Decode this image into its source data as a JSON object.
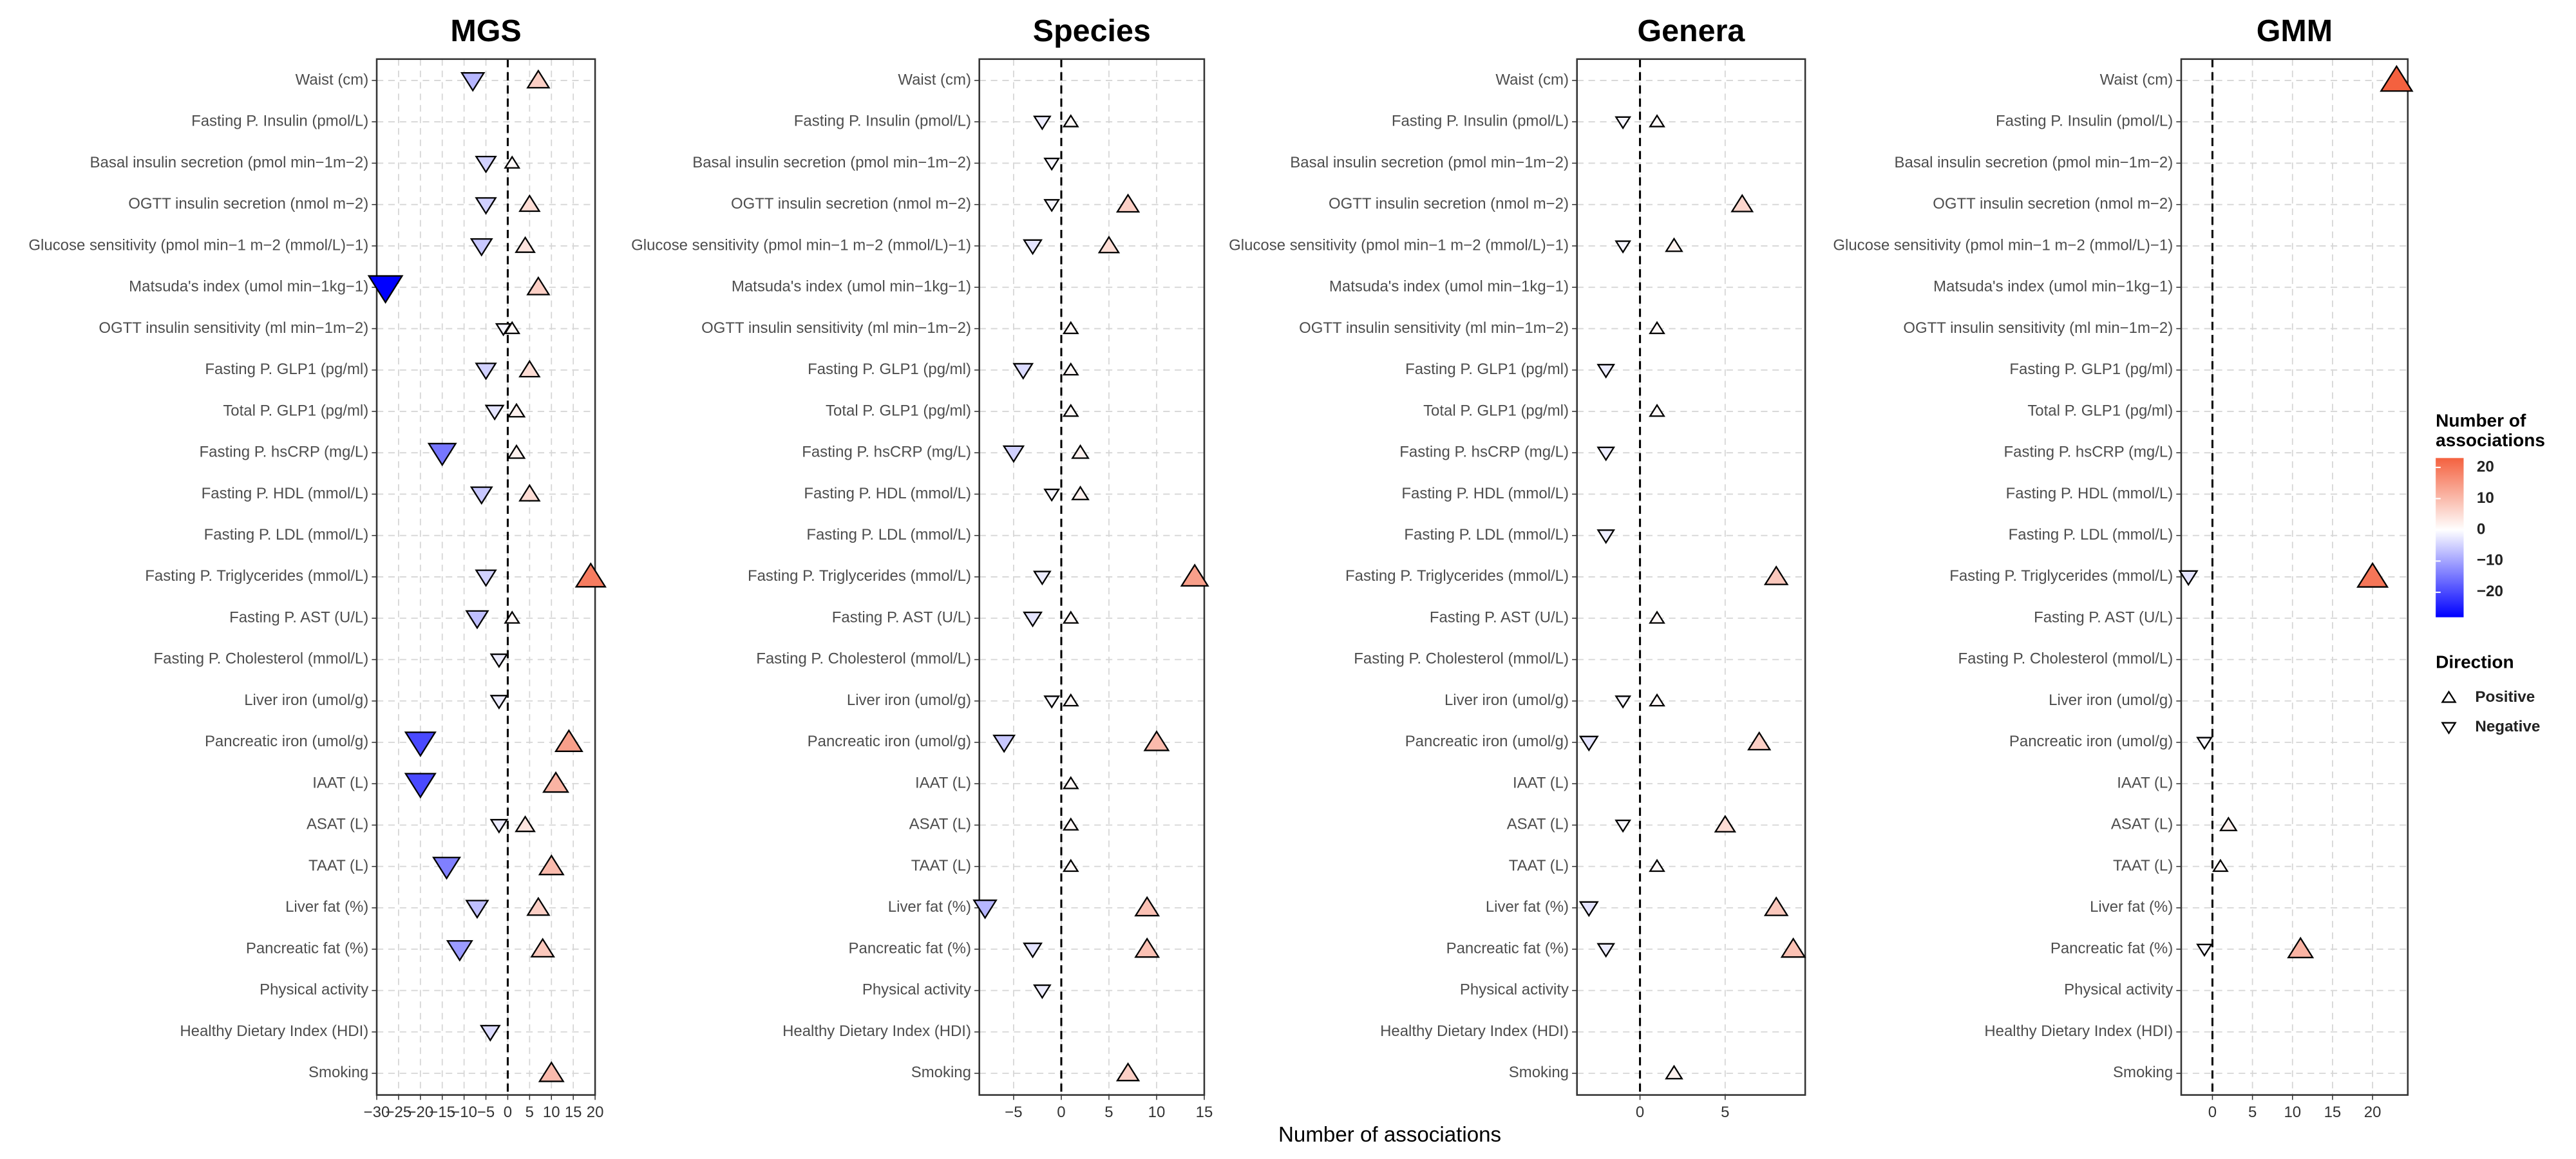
{
  "chart_data": [
    {
      "type": "scatter",
      "title": "MGS",
      "categories": [
        "Waist (cm)",
        "Fasting P. Insulin (pmol/L)",
        "Basal insulin secretion (pmol min−1m−2)",
        "OGTT insulin secretion (nmol m−2)",
        "Glucose sensitivity (pmol min−1 m−2 (mmol/L)−1)",
        "Matsuda's index (umol min−1kg−1)",
        "OGTT insulin sensitivity (ml min−1m−2)",
        "Fasting P. GLP1 (pg/ml)",
        "Total P. GLP1 (pg/ml)",
        "Fasting P. hsCRP (mg/L)",
        "Fasting P. HDL  (mmol/L)",
        "Fasting P. LDL  (mmol/L)",
        "Fasting P. Triglycerides  (mmol/L)",
        "Fasting P. AST (U/L)",
        "Fasting P. Cholesterol  (mmol/L)",
        "Liver iron (umol/g)",
        "Pancreatic iron (umol/g)",
        "IAAT (L)",
        "ASAT (L)",
        "TAAT (L)",
        "Liver fat (%)",
        "Pancreatic fat (%)",
        "Physical activity",
        "Healthy Dietary Index (HDI)",
        "Smoking"
      ],
      "series": [
        {
          "name": "Positive",
          "values": [
            7,
            null,
            1,
            5,
            4,
            7,
            1,
            5,
            2,
            2,
            5,
            null,
            19,
            1,
            null,
            null,
            14,
            11,
            4,
            10,
            7,
            8,
            null,
            null,
            10
          ]
        },
        {
          "name": "Negative",
          "values": [
            -8,
            null,
            -5,
            -5,
            -6,
            -28,
            -1,
            -5,
            -3,
            -15,
            -6,
            null,
            -5,
            -7,
            -2,
            -2,
            -20,
            -20,
            -2,
            -14,
            -7,
            -11,
            null,
            -4,
            null
          ]
        }
      ],
      "xlim": [
        -30,
        20
      ],
      "xticks": [
        {
          "value": -30,
          "label": "−30"
        },
        {
          "value": -25,
          "label": "−25"
        },
        {
          "value": -20,
          "label": "−20"
        },
        {
          "value": -15,
          "label": "−15"
        },
        {
          "value": -10,
          "label": "−10"
        },
        {
          "value": -5,
          "label": "−5"
        },
        0,
        5,
        10,
        15,
        20
      ],
      "grid": true
    },
    {
      "type": "scatter",
      "title": "Species",
      "categories": [
        "Waist (cm)",
        "Fasting P. Insulin (pmol/L)",
        "Basal insulin secretion (pmol min−1m−2)",
        "OGTT insulin secretion (nmol m−2)",
        "Glucose sensitivity (pmol min−1 m−2 (mmol/L)−1)",
        "Matsuda's index (umol min−1kg−1)",
        "OGTT insulin sensitivity (ml min−1m−2)",
        "Fasting P. GLP1 (pg/ml)",
        "Total P. GLP1 (pg/ml)",
        "Fasting P. hsCRP (mg/L)",
        "Fasting P. HDL  (mmol/L)",
        "Fasting P. LDL  (mmol/L)",
        "Fasting P. Triglycerides  (mmol/L)",
        "Fasting P. AST (U/L)",
        "Fasting P. Cholesterol  (mmol/L)",
        "Liver iron (umol/g)",
        "Pancreatic iron (umol/g)",
        "IAAT (L)",
        "ASAT (L)",
        "TAAT (L)",
        "Liver fat (%)",
        "Pancreatic fat (%)",
        "Physical activity",
        "Healthy Dietary Index (HDI)",
        "Smoking"
      ],
      "series": [
        {
          "name": "Positive",
          "values": [
            null,
            1,
            null,
            7,
            5,
            null,
            1,
            1,
            1,
            2,
            2,
            null,
            14,
            1,
            null,
            1,
            10,
            1,
            1,
            1,
            9,
            9,
            null,
            null,
            7
          ]
        },
        {
          "name": "Negative",
          "values": [
            null,
            -2,
            -1,
            -1,
            -3,
            null,
            null,
            -4,
            null,
            -5,
            -1,
            null,
            -2,
            -3,
            null,
            -1,
            -6,
            null,
            null,
            null,
            -8,
            -3,
            -2,
            null,
            null
          ]
        }
      ],
      "xlim": [
        -8.6,
        15
      ],
      "xticks": [
        {
          "value": -5,
          "label": "−5"
        },
        0,
        5,
        10,
        15
      ],
      "grid": true
    },
    {
      "type": "scatter",
      "title": "Genera",
      "categories": [
        "Waist (cm)",
        "Fasting P. Insulin (pmol/L)",
        "Basal insulin secretion (pmol min−1m−2)",
        "OGTT insulin secretion (nmol m−2)",
        "Glucose sensitivity (pmol min−1 m−2 (mmol/L)−1)",
        "Matsuda's index (umol min−1kg−1)",
        "OGTT insulin sensitivity (ml min−1m−2)",
        "Fasting P. GLP1 (pg/ml)",
        "Total P. GLP1 (pg/ml)",
        "Fasting P. hsCRP (mg/L)",
        "Fasting P. HDL  (mmol/L)",
        "Fasting P. LDL  (mmol/L)",
        "Fasting P. Triglycerides  (mmol/L)",
        "Fasting P. AST (U/L)",
        "Fasting P. Cholesterol  (mmol/L)",
        "Liver iron (umol/g)",
        "Pancreatic iron (umol/g)",
        "IAAT (L)",
        "ASAT (L)",
        "TAAT (L)",
        "Liver fat (%)",
        "Pancreatic fat (%)",
        "Physical activity",
        "Healthy Dietary Index (HDI)",
        "Smoking"
      ],
      "series": [
        {
          "name": "Positive",
          "values": [
            null,
            1,
            null,
            6,
            2,
            null,
            1,
            null,
            1,
            null,
            null,
            null,
            8,
            1,
            null,
            1,
            7,
            null,
            5,
            1,
            8,
            9,
            null,
            null,
            2
          ]
        },
        {
          "name": "Negative",
          "values": [
            null,
            -1,
            null,
            null,
            -1,
            null,
            null,
            -2,
            null,
            -2,
            null,
            -2,
            null,
            null,
            null,
            -1,
            -3,
            null,
            -1,
            null,
            -3,
            -2,
            null,
            null,
            null
          ]
        }
      ],
      "xlim": [
        -3.7,
        9.7
      ],
      "xticks": [
        0,
        5
      ],
      "grid": true
    },
    {
      "type": "scatter",
      "title": "GMM",
      "categories": [
        "Waist (cm)",
        "Fasting P. Insulin (pmol/L)",
        "Basal insulin secretion (pmol min−1m−2)",
        "OGTT insulin secretion (nmol m−2)",
        "Glucose sensitivity (pmol min−1 m−2 (mmol/L)−1)",
        "Matsuda's index (umol min−1kg−1)",
        "OGTT insulin sensitivity (ml min−1m−2)",
        "Fasting P. GLP1 (pg/ml)",
        "Total P. GLP1 (pg/ml)",
        "Fasting P. hsCRP (mg/L)",
        "Fasting P. HDL  (mmol/L)",
        "Fasting P. LDL  (mmol/L)",
        "Fasting P. Triglycerides  (mmol/L)",
        "Fasting P. AST (U/L)",
        "Fasting P. Cholesterol  (mmol/L)",
        "Liver iron (umol/g)",
        "Pancreatic iron (umol/g)",
        "IAAT (L)",
        "ASAT (L)",
        "TAAT (L)",
        "Liver fat (%)",
        "Pancreatic fat (%)",
        "Physical activity",
        "Healthy Dietary Index (HDI)",
        "Smoking"
      ],
      "series": [
        {
          "name": "Positive",
          "values": [
            23,
            null,
            null,
            null,
            null,
            null,
            null,
            null,
            null,
            null,
            null,
            null,
            20,
            null,
            null,
            null,
            null,
            null,
            2,
            1,
            null,
            11,
            null,
            null,
            null
          ]
        },
        {
          "name": "Negative",
          "values": [
            null,
            null,
            null,
            null,
            null,
            null,
            null,
            null,
            null,
            null,
            null,
            null,
            -3,
            null,
            null,
            null,
            -1,
            null,
            null,
            null,
            null,
            -1,
            null,
            null,
            null
          ]
        }
      ],
      "xlim": [
        -3.9,
        24.4
      ],
      "xticks": [
        0,
        5,
        10,
        15,
        20
      ],
      "grid": true
    }
  ],
  "x_label": "Number of associations",
  "color_legend": {
    "title_lines": [
      "Number of",
      "associations"
    ],
    "lim": [
      -28,
      23
    ],
    "low": "#0000ff",
    "mid": "#ffffff",
    "high": "#f4613f",
    "ticks": [
      20,
      10,
      0,
      {
        "value": -10,
        "label": "−10"
      },
      {
        "value": -20,
        "label": "−20"
      }
    ]
  },
  "direction_legend": {
    "title": "Direction",
    "entries": [
      "Positive",
      "Negative"
    ]
  }
}
